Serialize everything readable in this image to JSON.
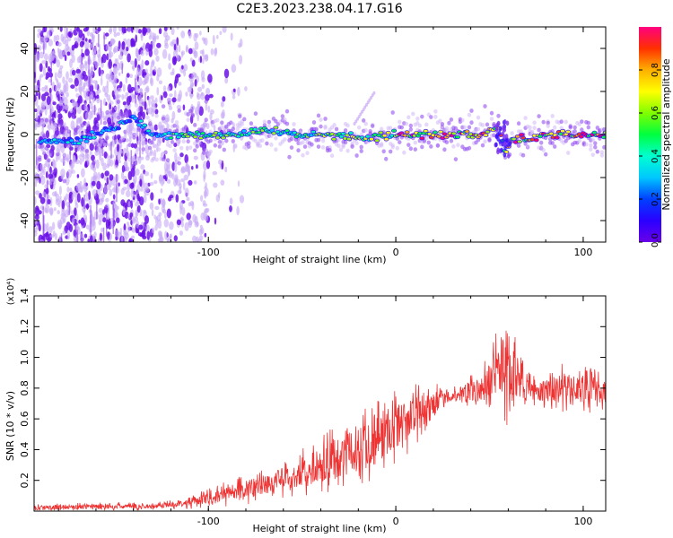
{
  "chart_data": [
    {
      "type": "heatmap",
      "title": "C2E3.2023.238.04.17.G16",
      "xlabel": "Height of straight line (km)",
      "ylabel": "Frequency (Hz)",
      "xlim": [
        -193,
        112
      ],
      "ylim": [
        -50,
        50
      ],
      "xticks": [
        -100,
        0,
        100
      ],
      "xtick_labels": [
        "-100",
        "0",
        "100"
      ],
      "yticks": [
        -40,
        -20,
        0,
        20,
        40
      ],
      "ytick_labels": [
        "-40",
        "-20",
        "0",
        "20",
        "40"
      ],
      "colorbar": {
        "label": "Normalized spectral amplitude",
        "range": [
          0,
          1
        ],
        "ticks": [
          0.0,
          0.2,
          0.4,
          0.6,
          0.8
        ],
        "tick_labels": [
          "0.0",
          "0.2",
          "0.4",
          "0.6",
          "0.8"
        ],
        "colors": [
          "#5a00e6",
          "#2a2aff",
          "#00c8ff",
          "#00ffb0",
          "#00ff40",
          "#a0ff00",
          "#ffff00",
          "#ffb000",
          "#ff4000",
          "#ff0060",
          "#ff0080"
        ]
      },
      "ridge": [
        {
          "x": -170,
          "y": -3
        },
        {
          "x": -150,
          "y": 3
        },
        {
          "x": -140,
          "y": 8
        },
        {
          "x": -130,
          "y": 0
        },
        {
          "x": -100,
          "y": 0
        },
        {
          "x": -80,
          "y": 0
        },
        {
          "x": -70,
          "y": 2
        },
        {
          "x": -50,
          "y": 0
        },
        {
          "x": -30,
          "y": 0
        },
        {
          "x": -20,
          "y": -2
        },
        {
          "x": 0,
          "y": 0
        },
        {
          "x": 20,
          "y": 0
        },
        {
          "x": 45,
          "y": 0
        },
        {
          "x": 55,
          "y": 3
        },
        {
          "x": 58,
          "y": -8
        },
        {
          "x": 62,
          "y": -3
        },
        {
          "x": 80,
          "y": 0
        },
        {
          "x": 112,
          "y": 0
        }
      ]
    },
    {
      "type": "line",
      "xlabel": "Height of straight line (km)",
      "ylabel": "SNR (10 * v/v)",
      "y_scale_label": "(x10⁴)",
      "xlim": [
        -193,
        112
      ],
      "ylim": [
        0,
        1.4
      ],
      "xticks": [
        -100,
        0,
        100
      ],
      "xtick_labels": [
        "-100",
        "0",
        "100"
      ],
      "yticks": [
        0.2,
        0.4,
        0.6,
        0.8,
        1.0,
        1.2,
        1.4
      ],
      "ytick_labels": [
        "0.2",
        "0.4",
        "0.6",
        "0.8",
        "1.0",
        "1.2",
        "1.4"
      ],
      "color": "#ee3333",
      "series": [
        {
          "name": "SNR",
          "x": [
            -193,
            -160,
            -130,
            -115,
            -100,
            -85,
            -70,
            -55,
            -40,
            -25,
            -15,
            0,
            10,
            20,
            30,
            40,
            48,
            55,
            60,
            65,
            75,
            90,
            112
          ],
          "y": [
            0.02,
            0.03,
            0.03,
            0.05,
            0.08,
            0.13,
            0.17,
            0.22,
            0.3,
            0.38,
            0.45,
            0.55,
            0.62,
            0.7,
            0.75,
            0.78,
            0.79,
            0.95,
            1.0,
            0.85,
            0.78,
            0.8,
            0.78
          ]
        }
      ],
      "noise_envelope": [
        {
          "x": -193,
          "a": 0.02
        },
        {
          "x": -120,
          "a": 0.02
        },
        {
          "x": -90,
          "a": 0.06
        },
        {
          "x": -60,
          "a": 0.1
        },
        {
          "x": -30,
          "a": 0.16
        },
        {
          "x": -10,
          "a": 0.22
        },
        {
          "x": 10,
          "a": 0.15
        },
        {
          "x": 30,
          "a": 0.04
        },
        {
          "x": 45,
          "a": 0.1
        },
        {
          "x": 55,
          "a": 0.25
        },
        {
          "x": 60,
          "a": 0.35
        },
        {
          "x": 65,
          "a": 0.18
        },
        {
          "x": 75,
          "a": 0.08
        },
        {
          "x": 90,
          "a": 0.12
        },
        {
          "x": 112,
          "a": 0.1
        }
      ]
    }
  ]
}
